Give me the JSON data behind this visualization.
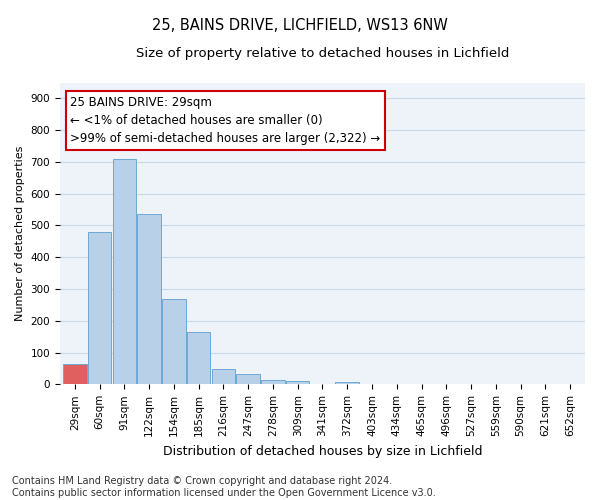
{
  "title_line1": "25, BAINS DRIVE, LICHFIELD, WS13 6NW",
  "title_line2": "Size of property relative to detached houses in Lichfield",
  "xlabel": "Distribution of detached houses by size in Lichfield",
  "ylabel": "Number of detached properties",
  "categories": [
    "29sqm",
    "60sqm",
    "91sqm",
    "122sqm",
    "154sqm",
    "185sqm",
    "216sqm",
    "247sqm",
    "278sqm",
    "309sqm",
    "341sqm",
    "372sqm",
    "403sqm",
    "434sqm",
    "465sqm",
    "496sqm",
    "527sqm",
    "559sqm",
    "590sqm",
    "621sqm",
    "652sqm"
  ],
  "values": [
    65,
    478,
    710,
    537,
    270,
    165,
    47,
    32,
    14,
    11,
    0,
    7,
    0,
    0,
    0,
    0,
    0,
    0,
    0,
    0,
    0
  ],
  "bar_color": "#b8d0e8",
  "bar_edge_color": "#6aaad4",
  "highlight_color": "#e06060",
  "highlight_index": 0,
  "annotation_text_line1": "25 BAINS DRIVE: 29sqm",
  "annotation_text_line2": "← <1% of detached houses are smaller (0)",
  "annotation_text_line3": ">99% of semi-detached houses are larger (2,322) →",
  "annotation_box_edge_color": "#cc0000",
  "ylim": [
    0,
    950
  ],
  "yticks": [
    0,
    100,
    200,
    300,
    400,
    500,
    600,
    700,
    800,
    900
  ],
  "grid_color": "#c8d8e8",
  "background_color": "#eef3f9",
  "footer_line1": "Contains HM Land Registry data © Crown copyright and database right 2024.",
  "footer_line2": "Contains public sector information licensed under the Open Government Licence v3.0.",
  "title_fontsize": 10.5,
  "subtitle_fontsize": 9.5,
  "ylabel_fontsize": 8,
  "xlabel_fontsize": 9,
  "tick_fontsize": 7.5,
  "annotation_fontsize": 8.5,
  "footer_fontsize": 7
}
